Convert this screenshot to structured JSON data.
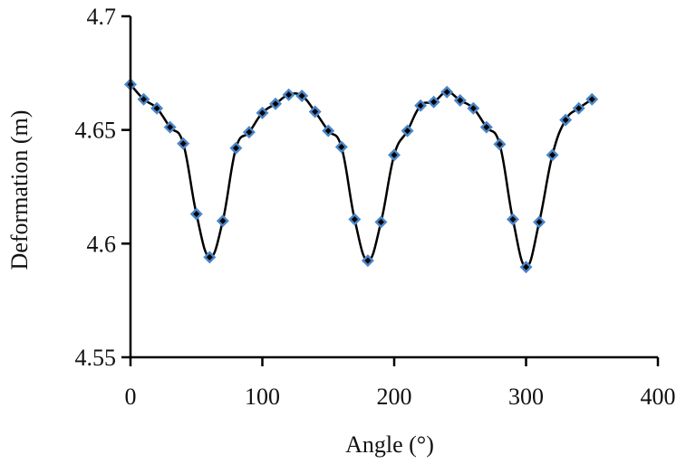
{
  "chart_data": {
    "type": "line",
    "title": "",
    "xlabel": "Angle (°)",
    "ylabel": "Deformation (m)",
    "xlim": [
      0,
      400
    ],
    "ylim": [
      4.55,
      4.7
    ],
    "x_ticks": [
      "0",
      "100",
      "200",
      "300",
      "400"
    ],
    "y_ticks": [
      "4.55",
      "4.6",
      "4.65",
      "4.7"
    ],
    "grid": false,
    "legend": null,
    "series": [
      {
        "name": "Deformation",
        "marker": "diamond",
        "marker_color": "#4a86c8",
        "marker_inner_color": "#000000",
        "line_color": "#000000",
        "x": [
          0,
          10,
          20,
          30,
          40,
          50,
          60,
          70,
          80,
          90,
          100,
          110,
          120,
          130,
          140,
          150,
          160,
          170,
          180,
          190,
          200,
          210,
          220,
          230,
          240,
          250,
          260,
          270,
          280,
          290,
          300,
          310,
          320,
          330,
          340,
          350
        ],
        "values": [
          4.67,
          4.6635,
          4.6595,
          4.6512,
          4.644,
          4.613,
          4.594,
          4.61,
          4.642,
          4.649,
          4.6575,
          4.6615,
          4.6655,
          4.665,
          4.658,
          4.6496,
          4.6425,
          4.6107,
          4.5925,
          4.6095,
          4.639,
          4.6496,
          4.6607,
          4.6623,
          4.6667,
          4.663,
          4.6595,
          4.6512,
          4.6437,
          4.6107,
          4.5897,
          4.6095,
          4.639,
          4.6544,
          4.6595,
          4.6635
        ]
      }
    ]
  }
}
